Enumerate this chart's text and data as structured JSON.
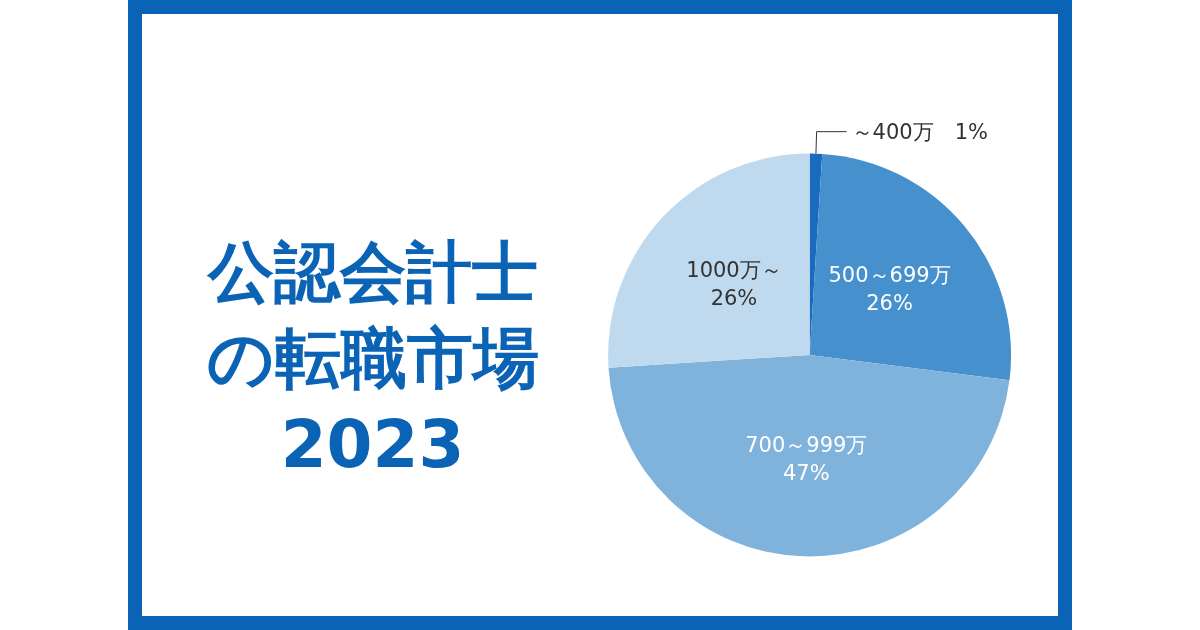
{
  "chart_data": {
    "type": "pie",
    "title": "公認会計士の転職市場2023",
    "categories": [
      "～400万",
      "500～699万",
      "700～999万",
      "1000万～"
    ],
    "values": [
      1,
      26,
      47,
      26
    ],
    "value_labels": [
      "1%",
      "26%",
      "47%",
      "26%"
    ],
    "colors": [
      "#1a6ac0",
      "#4590cd",
      "#80b3dc",
      "#bfd9ee"
    ],
    "legend": false
  }
}
